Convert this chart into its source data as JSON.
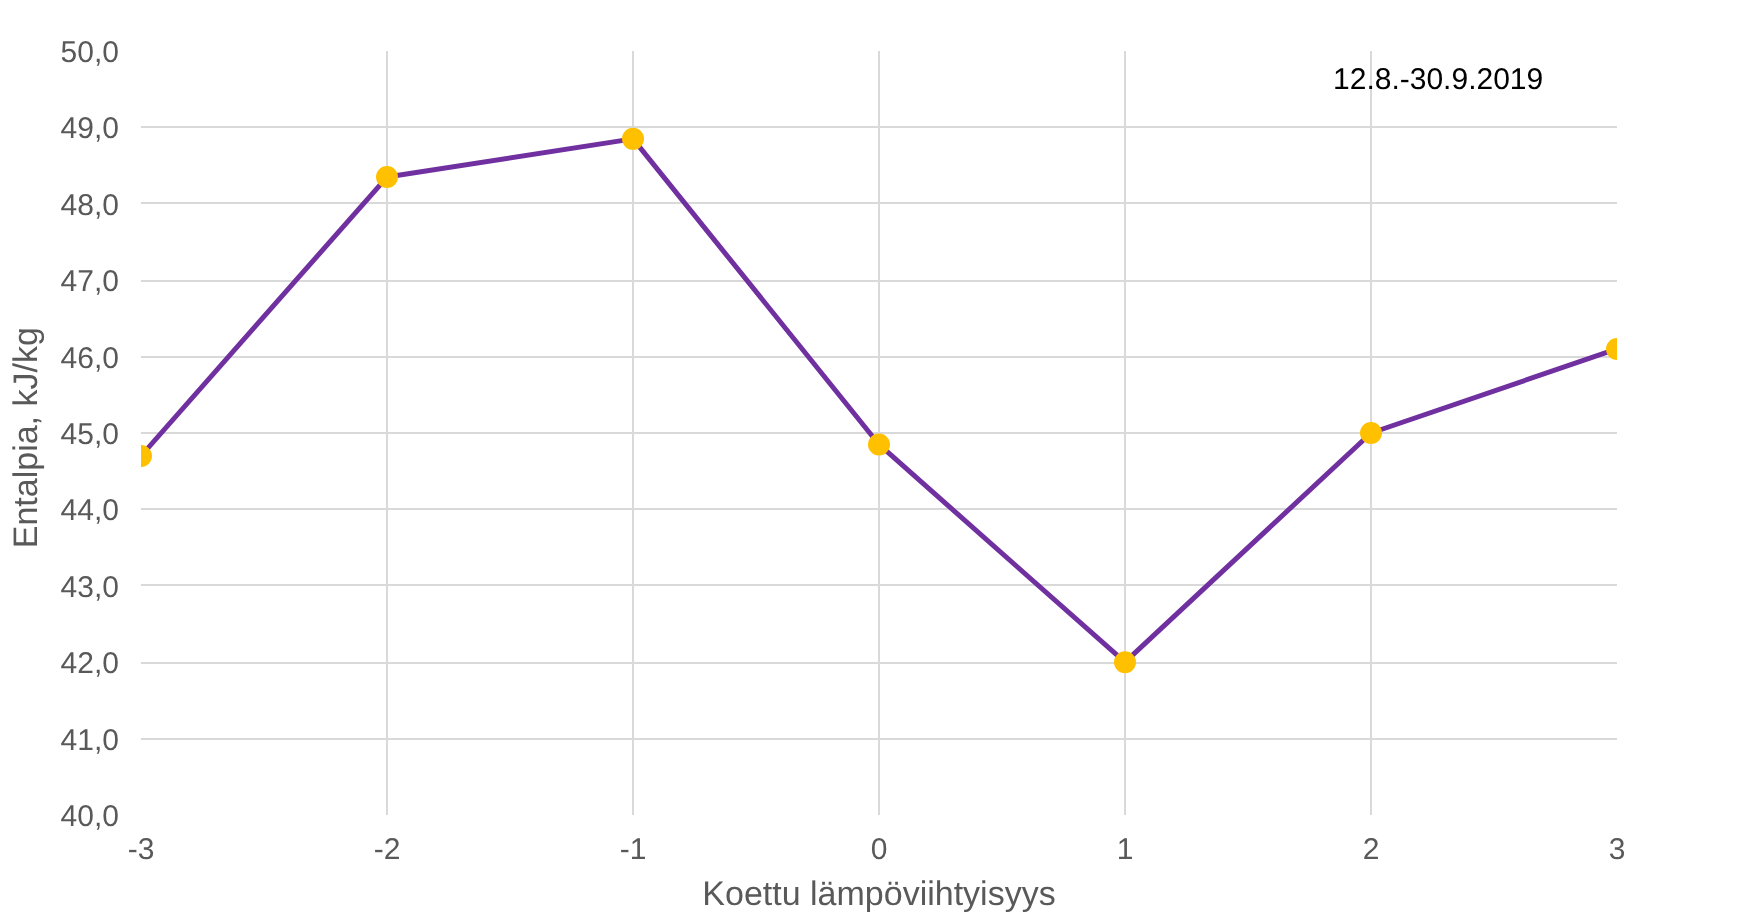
{
  "chart_data": {
    "type": "line",
    "xlabel": "Koettu lämpöviihtyisyys",
    "ylabel": "Entalpia,  kJ/kg",
    "annotations": [
      "12.8.-30.9.2019"
    ],
    "x": [
      -3,
      -2,
      -1,
      0,
      1,
      2,
      3
    ],
    "series": [
      {
        "color": "#7030a0",
        "colors": [
          "#ffc000",
          "#ffc000",
          "#ffc000",
          "#ffc000",
          "#ffc000",
          "#ffc000",
          "#ffc000"
        ],
        "values": [
          44.7,
          48.35,
          48.85,
          44.85,
          42.0,
          45.0,
          46.1
        ]
      }
    ],
    "xlim": [
      -3,
      3
    ],
    "xticks": [
      -3,
      -2,
      -1,
      0,
      1,
      2,
      3
    ],
    "ylim": [
      40,
      50
    ],
    "yticks": [
      {
        "value": 40,
        "label": "40,0"
      },
      {
        "value": 41,
        "label": "41,0"
      },
      {
        "value": 42,
        "label": "42,0"
      },
      {
        "value": 43,
        "label": "43,0"
      },
      {
        "value": 44,
        "label": "44,0"
      },
      {
        "value": 45,
        "label": "45,0"
      },
      {
        "value": 46,
        "label": "46,0"
      },
      {
        "value": 47,
        "label": "47,0"
      },
      {
        "value": 48,
        "label": "48,0"
      },
      {
        "value": 49,
        "label": "49,0"
      },
      {
        "value": 50,
        "label": "50,0"
      }
    ],
    "grid": true,
    "marker": "circle",
    "line_style": "solid"
  }
}
